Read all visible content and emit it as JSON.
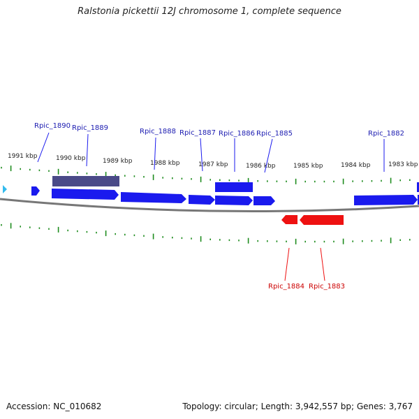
{
  "title": "Ralstonia pickettii 12J chromosome 1, complete sequence",
  "footer": {
    "accession": "Accession: NC_010682",
    "summary": "Topology: circular; Length: 3,942,557 bp; Genes: 3,767"
  },
  "kbp_labels": [
    "1991 kbp",
    "1990 kbp",
    "1989 kbp",
    "1988 kbp",
    "1987 kbp",
    "1986 kbp",
    "1985 kbp",
    "1984 kbp",
    "1983 kbp"
  ],
  "genes_forward": [
    "Rpic_1890",
    "Rpic_1889",
    "Rpic_1888",
    "Rpic_1887",
    "Rpic_1886",
    "Rpic_1885",
    "Rpic_1882"
  ],
  "genes_reverse": [
    "Rpic_1884",
    "Rpic_1883"
  ],
  "colors": {
    "forward_gene": "#1a1aee",
    "pseudo_gene": "#4a4a88",
    "reverse_gene": "#ee1111",
    "forward_label": "#1a1ab0",
    "reverse_label": "#cc0000",
    "tick": "#1e8c1e",
    "backbone": "#777777",
    "rna": "#33bbee"
  }
}
